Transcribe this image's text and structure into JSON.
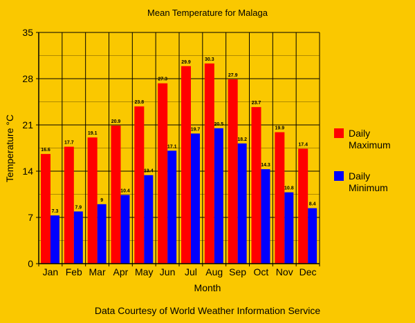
{
  "chart_data": {
    "type": "bar",
    "title": "Mean Temperature for Malaga",
    "xlabel": "Month",
    "ylabel": "Temperature °C",
    "footer": "Data Courtesy of World Weather Information Service",
    "categories": [
      "Jan",
      "Feb",
      "Mar",
      "Apr",
      "May",
      "Jun",
      "Jul",
      "Aug",
      "Sep",
      "Oct",
      "Nov",
      "Dec"
    ],
    "series": [
      {
        "name": "Daily Maximum",
        "color": "#ff0000",
        "values": [
          16.6,
          17.7,
          19.1,
          20.9,
          23.8,
          27.3,
          29.9,
          30.3,
          27.9,
          23.7,
          19.9,
          17.4
        ]
      },
      {
        "name": "Daily Minimum",
        "color": "#0000ff",
        "values": [
          7.3,
          7.9,
          9,
          10.4,
          13.4,
          17.1,
          19.7,
          20.5,
          18.2,
          14.3,
          10.8,
          8.4
        ]
      }
    ],
    "ylim": [
      0,
      35
    ],
    "yticks": [
      0,
      7,
      14,
      21,
      28,
      35
    ],
    "grid": true,
    "legend_position": "right",
    "background": "#fac800"
  }
}
